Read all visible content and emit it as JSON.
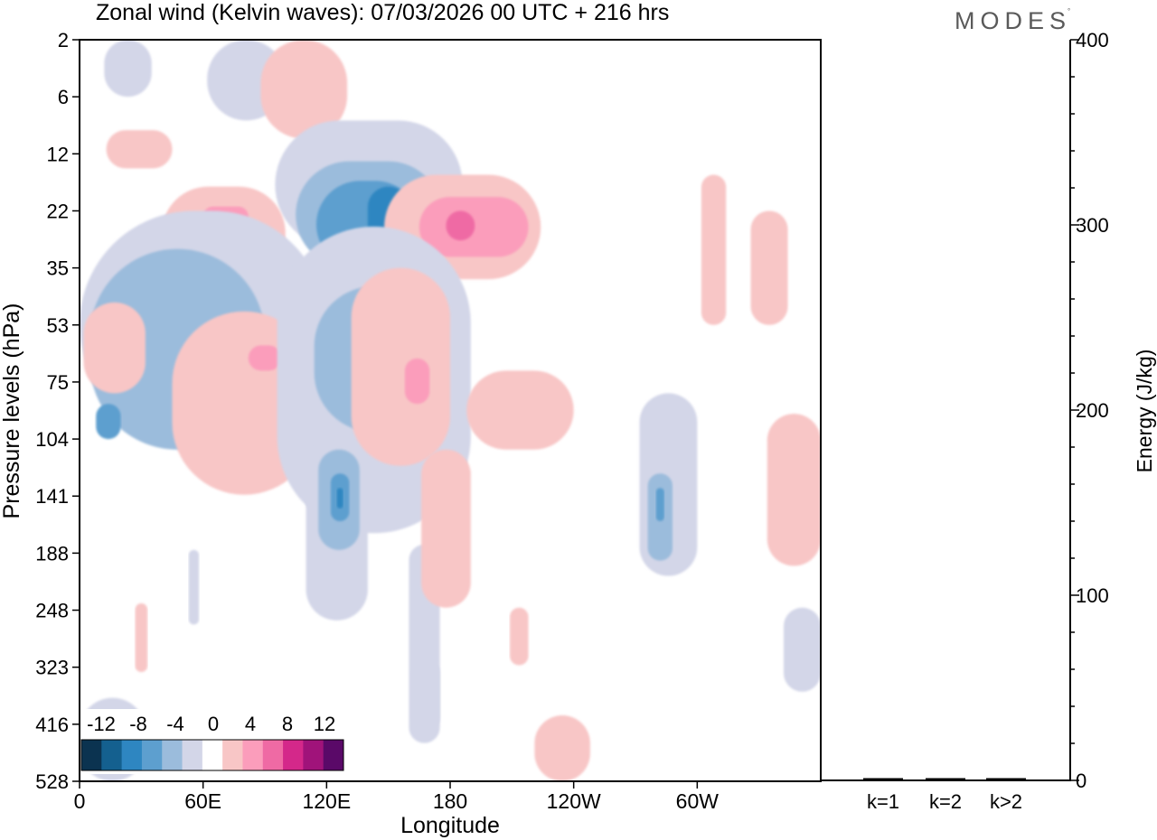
{
  "logo": {
    "text": "MODES",
    "mark": "°"
  },
  "chart_data": [
    {
      "type": "heatmap",
      "title": "Zonal wind (Kelvin waves):  07/03/2026  00 UTC  + 216 hrs",
      "xlabel": "Longitude",
      "ylabel": "Pressure levels (hPa)",
      "x_ticks": [
        "0",
        "60E",
        "120E",
        "180",
        "120W",
        "60W"
      ],
      "x_tick_values": [
        0,
        60,
        120,
        180,
        240,
        300
      ],
      "xlim": [
        0,
        360
      ],
      "y_ticks": [
        "2",
        "6",
        "12",
        "22",
        "35",
        "53",
        "75",
        "104",
        "141",
        "188",
        "248",
        "323",
        "416",
        "528"
      ],
      "y_scale": "level index (top = 2 hPa, bottom = 528 hPa)",
      "colorbar": {
        "labels": [
          "-12",
          "-8",
          "-4",
          "0",
          "4",
          "8",
          "12"
        ],
        "levels": [
          -16,
          -14,
          -12,
          -10,
          -8,
          -6,
          -4,
          -2,
          2,
          4,
          6,
          8,
          10,
          12,
          14
        ],
        "colors": [
          "#0b3350",
          "#14608f",
          "#2e86c1",
          "#5d9fcf",
          "#9bbcdc",
          "#d3d6e8",
          "#ffffff",
          "#f8c6c6",
          "#fb9dbb",
          "#ef6aa4",
          "#d4288a",
          "#a0137a",
          "#5a0968"
        ]
      },
      "features": [
        {
          "sign": "negative",
          "level": 1,
          "lon": [
            12,
            35
          ],
          "plev": [
            2,
            6
          ]
        },
        {
          "sign": "negative",
          "level": 1,
          "lon": [
            62,
            100
          ],
          "plev": [
            2,
            8
          ]
        },
        {
          "sign": "positive",
          "level": 1,
          "lon": [
            88,
            130
          ],
          "plev": [
            2,
            10
          ]
        },
        {
          "sign": "positive",
          "level": 1,
          "lon": [
            13,
            45
          ],
          "plev": [
            9,
            14
          ]
        },
        {
          "sign": "negative",
          "level": 1,
          "lon": [
            95,
            186
          ],
          "plev": [
            8,
            30
          ]
        },
        {
          "sign": "negative",
          "level": 2,
          "lon": [
            105,
            176
          ],
          "plev": [
            13,
            35
          ]
        },
        {
          "sign": "negative",
          "level": 3,
          "lon": [
            115,
            165
          ],
          "plev": [
            16,
            35
          ]
        },
        {
          "sign": "negative",
          "level": 4,
          "lon": [
            140,
            160
          ],
          "plev": [
            17,
            30
          ]
        },
        {
          "sign": "positive",
          "level": 1,
          "lon": [
            40,
            100
          ],
          "plev": [
            17,
            38
          ]
        },
        {
          "sign": "positive",
          "level": 2,
          "lon": [
            60,
            82
          ],
          "plev": [
            21,
            25
          ]
        },
        {
          "sign": "positive",
          "level": 1,
          "lon": [
            148,
            224
          ],
          "plev": [
            15,
            38
          ]
        },
        {
          "sign": "positive",
          "level": 2,
          "lon": [
            165,
            218
          ],
          "plev": [
            19,
            32
          ]
        },
        {
          "sign": "positive",
          "level": 3,
          "lon": [
            178,
            192
          ],
          "plev": [
            22,
            28
          ]
        },
        {
          "sign": "negative",
          "level": 1,
          "lon": [
            0,
            120
          ],
          "plev": [
            22,
            104
          ]
        },
        {
          "sign": "negative",
          "level": 2,
          "lon": [
            5,
            90
          ],
          "plev": [
            30,
            110
          ]
        },
        {
          "sign": "negative",
          "level": 3,
          "lon": [
            8,
            20
          ],
          "plev": [
            85,
            104
          ]
        },
        {
          "sign": "positive",
          "level": 1,
          "lon": [
            2,
            32
          ],
          "plev": [
            45,
            80
          ]
        },
        {
          "sign": "positive",
          "level": 1,
          "lon": [
            45,
            115
          ],
          "plev": [
            48,
            140
          ]
        },
        {
          "sign": "positive",
          "level": 2,
          "lon": [
            82,
            98
          ],
          "plev": [
            60,
            70
          ]
        },
        {
          "sign": "negative",
          "level": 1,
          "lon": [
            96,
            190
          ],
          "plev": [
            25,
            170
          ]
        },
        {
          "sign": "negative",
          "level": 2,
          "lon": [
            114,
            172
          ],
          "plev": [
            40,
            100
          ]
        },
        {
          "sign": "positive",
          "level": 1,
          "lon": [
            132,
            180
          ],
          "plev": [
            35,
            120
          ]
        },
        {
          "sign": "positive",
          "level": 2,
          "lon": [
            158,
            170
          ],
          "plev": [
            65,
            85
          ]
        },
        {
          "sign": "negative",
          "level": 1,
          "lon": [
            110,
            140
          ],
          "plev": [
            104,
            260
          ]
        },
        {
          "sign": "negative",
          "level": 2,
          "lon": [
            116,
            136
          ],
          "plev": [
            110,
            185
          ]
        },
        {
          "sign": "negative",
          "level": 3,
          "lon": [
            122,
            131
          ],
          "plev": [
            125,
            160
          ]
        },
        {
          "sign": "negative",
          "level": 4,
          "lon": [
            125,
            128
          ],
          "plev": [
            135,
            150
          ]
        },
        {
          "sign": "negative",
          "level": 1,
          "lon": [
            160,
            175
          ],
          "plev": [
            180,
            450
          ]
        },
        {
          "sign": "positive",
          "level": 1,
          "lon": [
            188,
            240
          ],
          "plev": [
            70,
            110
          ]
        },
        {
          "sign": "positive",
          "level": 1,
          "lon": [
            166,
            190
          ],
          "plev": [
            110,
            245
          ]
        },
        {
          "sign": "negative",
          "level": 1,
          "lon": [
            272,
            300
          ],
          "plev": [
            80,
            210
          ]
        },
        {
          "sign": "negative",
          "level": 2,
          "lon": [
            276,
            288
          ],
          "plev": [
            125,
            195
          ]
        },
        {
          "sign": "negative",
          "level": 3,
          "lon": [
            280,
            284
          ],
          "plev": [
            135,
            160
          ]
        },
        {
          "sign": "positive",
          "level": 1,
          "lon": [
            302,
            314
          ],
          "plev": [
            15,
            53
          ]
        },
        {
          "sign": "positive",
          "level": 1,
          "lon": [
            326,
            344
          ],
          "plev": [
            22,
            53
          ]
        },
        {
          "sign": "positive",
          "level": 1,
          "lon": [
            334,
            360
          ],
          "plev": [
            90,
            200
          ]
        },
        {
          "sign": "positive",
          "level": 1,
          "lon": [
            27,
            33
          ],
          "plev": [
            240,
            330
          ]
        },
        {
          "sign": "negative",
          "level": 1,
          "lon": [
            53,
            58
          ],
          "plev": [
            185,
            265
          ]
        },
        {
          "sign": "positive",
          "level": 1,
          "lon": [
            209,
            218
          ],
          "plev": [
            245,
            320
          ]
        },
        {
          "sign": "positive",
          "level": 1,
          "lon": [
            221,
            248
          ],
          "plev": [
            400,
            528
          ]
        },
        {
          "sign": "negative",
          "level": 1,
          "lon": [
            161,
            175
          ],
          "plev": [
            310,
            430
          ]
        },
        {
          "sign": "negative",
          "level": 1,
          "lon": [
            342,
            360
          ],
          "plev": [
            245,
            360
          ]
        },
        {
          "sign": "negative",
          "level": 1,
          "lon": [
            0,
            32
          ],
          "plev": [
            370,
            528
          ]
        }
      ]
    },
    {
      "type": "bar",
      "ylabel": "Energy (J/kg)",
      "categories": [
        "k=1",
        "k=2",
        "k>2"
      ],
      "values": [
        0,
        0,
        0.5
      ],
      "ylim": [
        0,
        400
      ],
      "y_ticks": [
        "0",
        "100",
        "200",
        "300",
        "400"
      ]
    }
  ]
}
